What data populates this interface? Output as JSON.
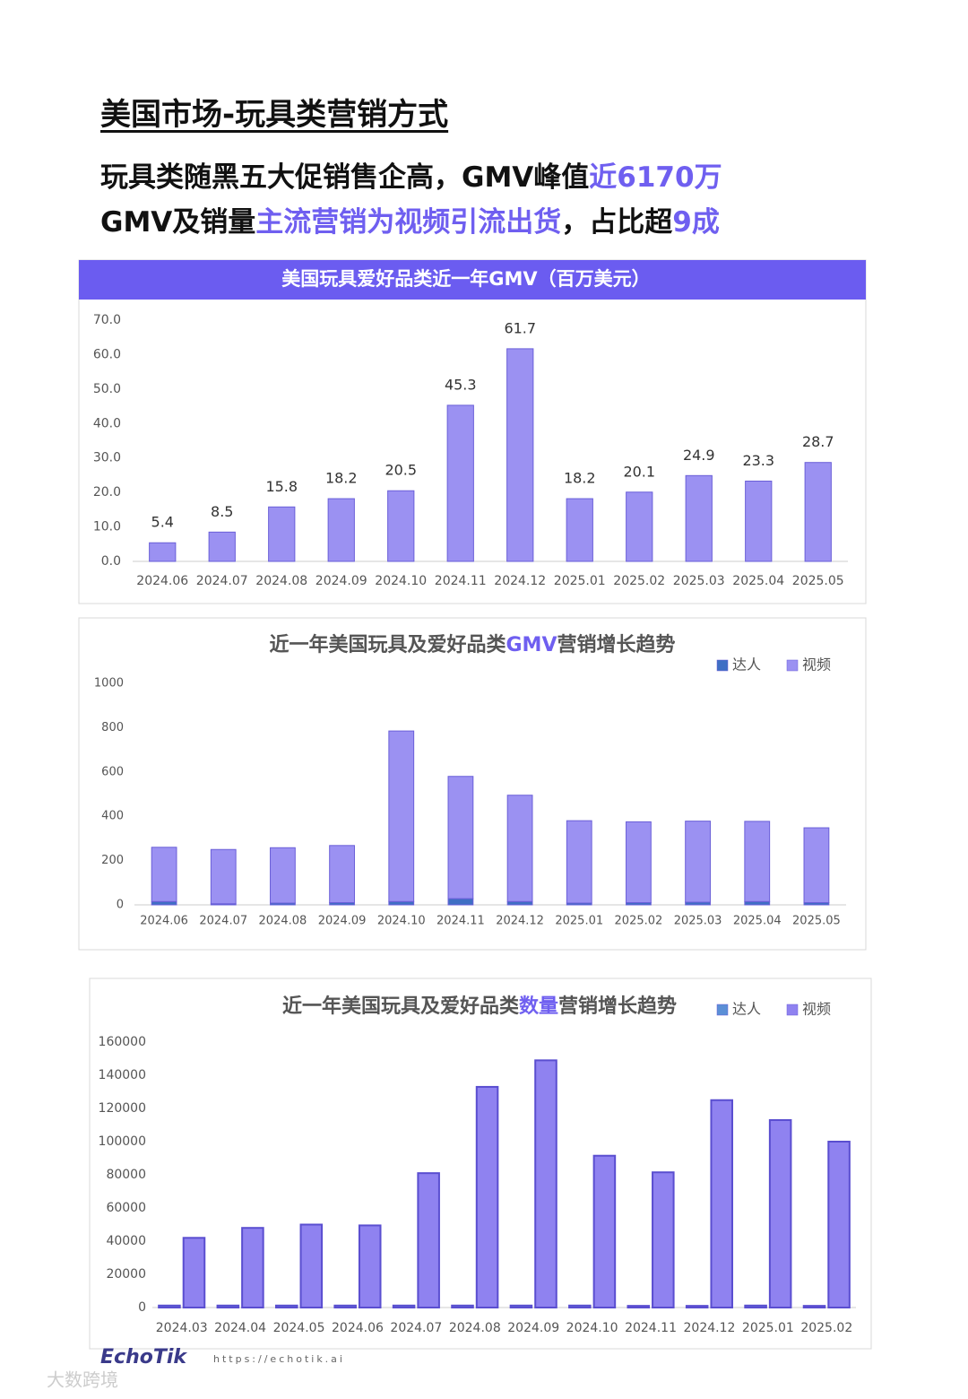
{
  "header": {
    "title": "美国市场-玩具类营销方式",
    "line1": [
      "玩具类随黑五大促销售企高，GMV峰值",
      "近6170万"
    ],
    "line2": [
      "GMV及销量",
      "主流营销为视频引流出货",
      "，占比超",
      "9成"
    ]
  },
  "footer": {
    "brand": "EchoTik",
    "url": "https://echotik.ai",
    "watermark": "大数跨境"
  },
  "chart_data": [
    {
      "type": "bar",
      "title": "美国玩具爱好品类近一年GMV（百万美元）",
      "color": "#9b91f2",
      "categories": [
        "2024.06",
        "2024.07",
        "2024.08",
        "2024.09",
        "2024.10",
        "2024.11",
        "2024.12",
        "2025.01",
        "2025.02",
        "2025.03",
        "2025.04",
        "2025.05"
      ],
      "values": [
        5.4,
        8.5,
        15.8,
        18.2,
        20.5,
        45.3,
        61.7,
        18.2,
        20.1,
        24.9,
        23.3,
        28.7
      ],
      "ylim": [
        0,
        70
      ],
      "yticks": [
        {
          "value": 0,
          "label": "0.0"
        },
        {
          "value": 10,
          "label": "10.0"
        },
        {
          "value": 20,
          "label": "20.0"
        },
        {
          "value": 30,
          "label": "30.0"
        },
        {
          "value": 40,
          "label": "40.0"
        },
        {
          "value": 50,
          "label": "50.0"
        },
        {
          "value": 60,
          "label": "60.0"
        },
        {
          "value": 70,
          "label": "70.0"
        }
      ]
    },
    {
      "type": "stacked_bar",
      "title": [
        "近一年美国玩具及爱好品类",
        "GMV",
        "营销增长趋势"
      ],
      "categories": [
        "2024.06",
        "2024.07",
        "2024.08",
        "2024.09",
        "2024.10",
        "2024.11",
        "2024.12",
        "2025.01",
        "2025.02",
        "2025.03",
        "2025.04",
        "2025.05"
      ],
      "series": [
        {
          "name": "达人",
          "color": "#3f6fc4",
          "values": [
            15,
            5,
            8,
            10,
            15,
            28,
            15,
            8,
            10,
            12,
            15,
            10
          ]
        },
        {
          "name": "视频",
          "color": "#9b91f2",
          "values": [
            245,
            245,
            250,
            258,
            770,
            552,
            480,
            372,
            365,
            366,
            362,
            338
          ]
        }
      ],
      "ylim": [
        0,
        1000
      ],
      "yticks": [
        0,
        200,
        400,
        600,
        800,
        1000
      ]
    },
    {
      "type": "grouped_bar",
      "title": [
        "近一年美国玩具及爱好品类",
        "数量",
        "营销增长趋势"
      ],
      "categories": [
        "2024.03",
        "2024.04",
        "2024.05",
        "2024.06",
        "2024.07",
        "2024.08",
        "2024.09",
        "2024.10",
        "2024.11",
        "2024.12",
        "2025.01",
        "2025.02"
      ],
      "series": [
        {
          "name": "达人",
          "color": "#5b8fd6",
          "values": [
            1200,
            1200,
            1200,
            1200,
            1200,
            1200,
            1200,
            1200,
            1000,
            1000,
            1200,
            1000
          ]
        },
        {
          "name": "视频",
          "color": "#8f82f0",
          "values": [
            42000,
            48000,
            50000,
            49500,
            81000,
            133000,
            149000,
            91500,
            81500,
            125000,
            113000,
            100000
          ]
        }
      ],
      "ylim": [
        0,
        160000
      ],
      "yticks": [
        0,
        20000,
        40000,
        60000,
        80000,
        100000,
        120000,
        140000,
        160000
      ]
    }
  ]
}
